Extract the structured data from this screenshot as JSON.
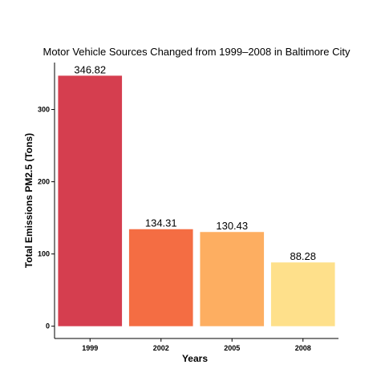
{
  "chart_data": {
    "type": "bar",
    "title": "Motor Vehicle Sources Changed from 1999–2008 in Baltimore City",
    "xlabel": "Years",
    "ylabel": "Total Emissions PM2.5 (Tons)",
    "categories": [
      "1999",
      "2002",
      "2005",
      "2008"
    ],
    "values": [
      346.82,
      134.31,
      130.43,
      88.28
    ],
    "value_labels": [
      "346.82",
      "134.31",
      "130.43",
      "88.28"
    ],
    "colors": [
      "#D53E4F",
      "#F46D43",
      "#FDAE61",
      "#FEE08B"
    ],
    "yticks": [
      0,
      100,
      200,
      300
    ],
    "ylim": [
      -17,
      365
    ],
    "grid": false,
    "legend": "none"
  }
}
